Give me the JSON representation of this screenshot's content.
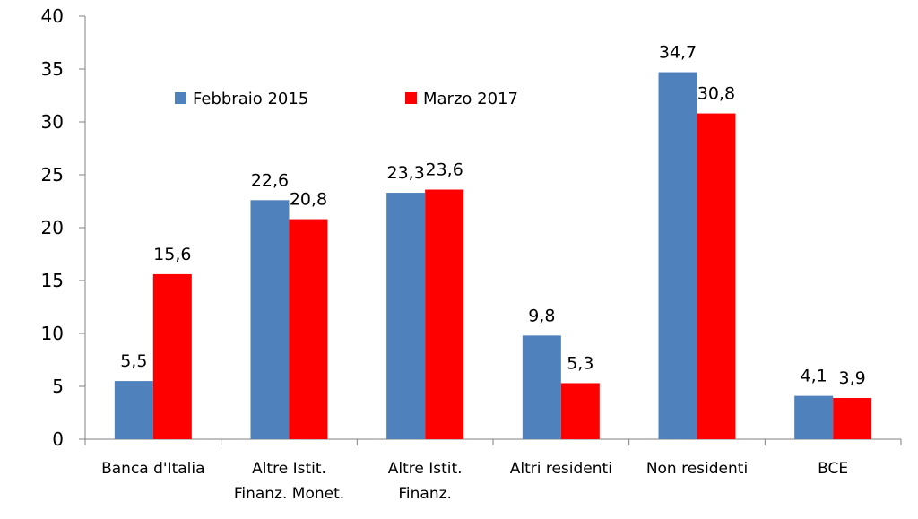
{
  "chart_data": {
    "type": "bar",
    "categories": [
      [
        "Banca d'Italia"
      ],
      [
        "Altre Istit.",
        "Finanz. Monet."
      ],
      [
        "Altre Istit.",
        "Finanz."
      ],
      [
        "Altri residenti"
      ],
      [
        "Non residenti"
      ],
      [
        "BCE"
      ]
    ],
    "series": [
      {
        "name": "Febbraio 2015",
        "color": "#4F81BD",
        "values": [
          5.5,
          22.6,
          23.3,
          9.8,
          34.7,
          4.1
        ],
        "labels": [
          "5,5",
          "22,6",
          "23,3",
          "9,8",
          "34,7",
          "4,1"
        ]
      },
      {
        "name": "Marzo 2017",
        "color": "#FF0000",
        "values": [
          15.6,
          20.8,
          23.6,
          5.3,
          30.8,
          3.9
        ],
        "labels": [
          "15,6",
          "20,8",
          "23,6",
          "5,3",
          "30,8",
          "3,9"
        ]
      }
    ],
    "ylim": [
      0,
      40
    ],
    "yticks": [
      0,
      5,
      10,
      15,
      20,
      25,
      30,
      35,
      40
    ],
    "grid": false,
    "legend_position": "top-left"
  }
}
